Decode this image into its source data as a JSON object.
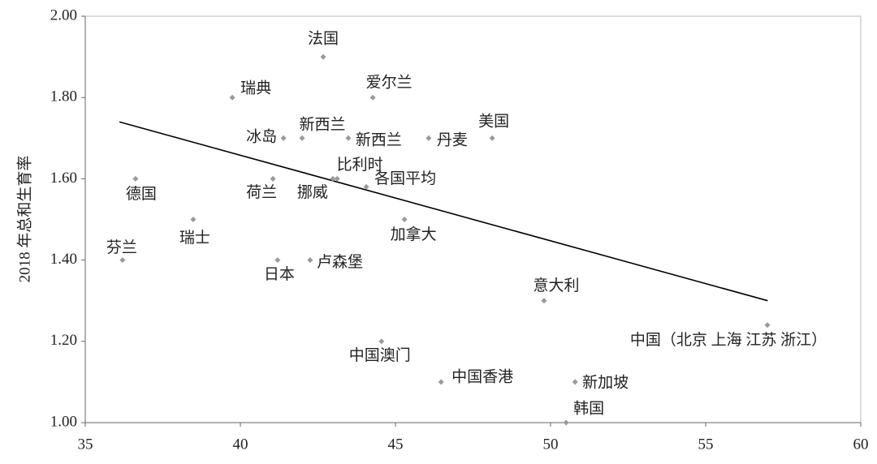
{
  "chart_data": {
    "type": "scatter",
    "y_label": "2018 年总和生育率",
    "xlim": [
      35,
      60
    ],
    "xticks": [
      35,
      40,
      45,
      50,
      55,
      60
    ],
    "ylim": [
      1.0,
      2.0
    ],
    "yticks": [
      {
        "value": 1.0,
        "label": "1.00"
      },
      {
        "value": 1.2,
        "label": "1.20"
      },
      {
        "value": 1.4,
        "label": "1.40"
      },
      {
        "value": 1.6,
        "label": "1.60"
      },
      {
        "value": 1.8,
        "label": "1.80"
      },
      {
        "value": 2.0,
        "label": "2.00"
      }
    ],
    "color": "#9a9a9a",
    "trend_color": "#000000",
    "labels": [
      "法国",
      "瑞典",
      "爱尔兰",
      "冰岛",
      "新西兰",
      "新西兰",
      "丹麦",
      "美国",
      "德国",
      "荷兰",
      "挪威",
      "比利时",
      "各国平均",
      "瑞士",
      "加拿大",
      "芬兰",
      "日本",
      "卢森堡",
      "意大利",
      "中国（北京 上海 江苏 浙江）",
      "中国澳门",
      "中国香港",
      "新加坡",
      "韩国"
    ],
    "x": [
      42.67,
      39.74,
      44.27,
      41.39,
      41.99,
      43.48,
      46.07,
      48.12,
      36.62,
      41.05,
      42.98,
      43.12,
      44.06,
      38.48,
      45.29,
      36.2,
      41.2,
      42.25,
      49.79,
      56.99,
      44.55,
      46.47,
      50.79,
      50.5
    ],
    "y": [
      1.9,
      1.8,
      1.8,
      1.7,
      1.7,
      1.7,
      1.7,
      1.7,
      1.6,
      1.6,
      1.6,
      1.6,
      1.58,
      1.5,
      1.5,
      1.4,
      1.4,
      1.4,
      1.3,
      1.24,
      1.2,
      1.1,
      1.1,
      1.0
    ],
    "trendline": {
      "x": [
        36.1,
        57.0
      ],
      "y": [
        1.74,
        1.3
      ]
    }
  }
}
